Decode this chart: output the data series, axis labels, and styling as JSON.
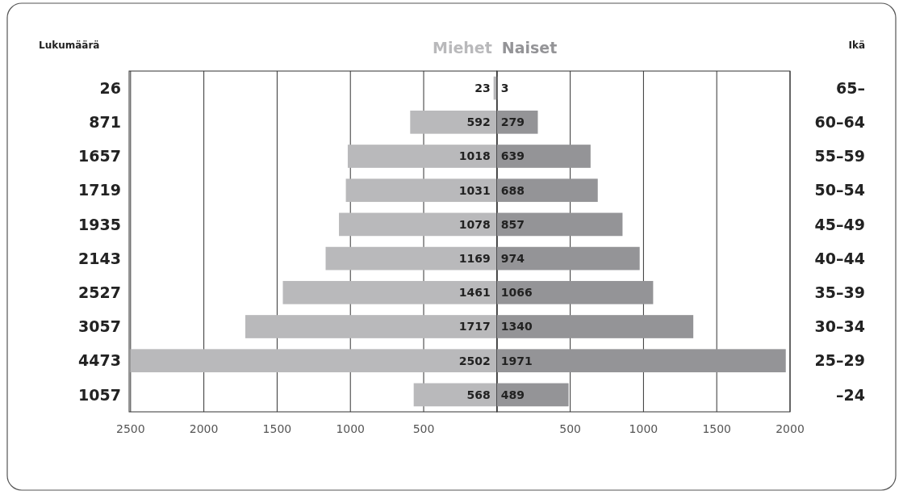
{
  "chart_data": [
    {
      "type": "bar",
      "orientation": "horizontal",
      "data_labels": true,
      "categories": [
        null,
        null,
        null,
        null,
        null,
        null,
        null,
        null,
        null,
        null
      ],
      "series": [
        {
          "name": "Miehet",
          "color": "#b9b9bb",
          "values": [
            23,
            592,
            1018,
            1031,
            1078,
            1169,
            1461,
            1717,
            2502,
            568
          ]
        }
      ],
      "xlim": [
        2510,
        0
      ],
      "xticks": [
        2500,
        2000,
        1500,
        1000,
        500,
        {
          "value": 0,
          "label": null
        }
      ],
      "annotations": [
        "Lukumäärä",
        "26",
        "871",
        "1657",
        "1719",
        "1935",
        "2143",
        "2527",
        "3057",
        "4473",
        "1057"
      ],
      "tick_labels": "x",
      "grid": "x",
      "legend": "top"
    },
    {
      "type": "bar",
      "orientation": "horizontal",
      "data_labels": true,
      "categories": [
        "65–",
        "60–64",
        "55–59",
        "50–54",
        "45–49",
        "40–44",
        "35–39",
        "30–34",
        "25–29",
        "–24"
      ],
      "series": [
        {
          "name": "Naiset",
          "color": "#949497",
          "values": [
            3,
            279,
            639,
            688,
            857,
            974,
            1066,
            1340,
            1971,
            489
          ]
        }
      ],
      "xlim": [
        0,
        2000
      ],
      "xticks": [
        {
          "value": 0,
          "label": null
        },
        500,
        1000,
        1500,
        2000
      ],
      "ylabel": "Ikä",
      "grid": "x",
      "legend": "top"
    }
  ]
}
